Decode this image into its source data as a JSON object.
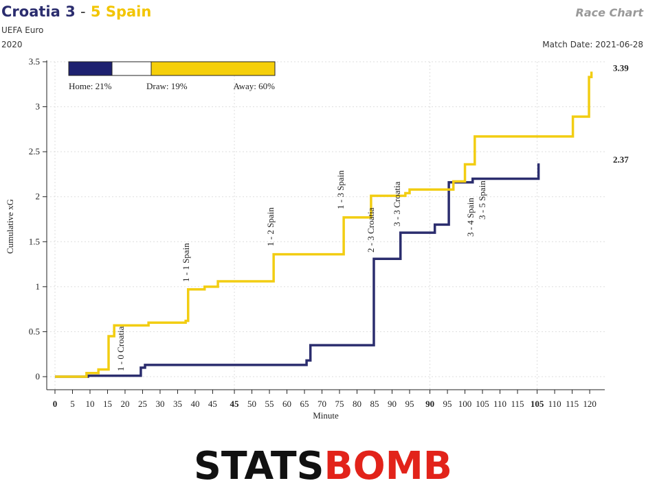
{
  "chart_data": {
    "type": "step",
    "title": {
      "home": "Croatia 3",
      "separator": "-",
      "away": "5 Spain"
    },
    "competition": "UEFA Euro",
    "season": "2020",
    "chart_name": "Race Chart",
    "match_date_label": "Match Date:",
    "match_date": "2021-06-28",
    "x_label": "Minute",
    "y_label": "Cumulative xG",
    "xlim": [
      -2.35,
      156.9
    ],
    "ylim": [
      -0.145,
      3.5
    ],
    "yticks": [
      0,
      0.5,
      1,
      1.5,
      2,
      2.5,
      3,
      3.5
    ],
    "xticks": [
      0,
      5,
      10,
      15,
      20,
      25,
      30,
      35,
      40,
      45,
      {
        "value": 51.2,
        "label": "45"
      },
      {
        "value": 56.2,
        "label": "50"
      },
      {
        "value": 61.2,
        "label": "55"
      },
      {
        "value": 66.2,
        "label": "60"
      },
      {
        "value": 71.2,
        "label": "65"
      },
      {
        "value": 76.2,
        "label": "70"
      },
      {
        "value": 81.2,
        "label": "75"
      },
      {
        "value": 86.2,
        "label": "80"
      },
      {
        "value": 91.2,
        "label": "85"
      },
      {
        "value": 96.2,
        "label": "90"
      },
      {
        "value": 101.2,
        "label": "95"
      },
      {
        "value": 107,
        "label": "90"
      },
      {
        "value": 112,
        "label": "95"
      },
      {
        "value": 117,
        "label": "100"
      },
      {
        "value": 122,
        "label": "105"
      },
      {
        "value": 127,
        "label": "110"
      },
      {
        "value": 132,
        "label": "115"
      },
      {
        "value": 137.6,
        "label": "105"
      },
      {
        "value": 142.6,
        "label": "110"
      },
      {
        "value": 147.6,
        "label": "115"
      },
      {
        "value": 152.6,
        "label": "120"
      }
    ],
    "period_starts": [
      0,
      51.2,
      107,
      137.6
    ],
    "grid": true,
    "series": [
      {
        "name": "Croatia",
        "color": "#2b2d6e",
        "x": [
          0,
          9.4,
          24.5,
          25.7,
          71.8,
          72.9,
          91,
          98.6,
          108.4,
          112.4,
          119.2,
          138
        ],
        "values": [
          0,
          0.01,
          0.1,
          0.13,
          0.18,
          0.35,
          1.31,
          1.6,
          1.69,
          2.16,
          2.2,
          2.37
        ]
      },
      {
        "name": "Spain",
        "color": "#f2cd12",
        "x": [
          0,
          9,
          12.4,
          15.3,
          16.9,
          26.7,
          37.3,
          38,
          42.7,
          46.5,
          62.4,
          82.4,
          90.2,
          100,
          101.2,
          113.7,
          117,
          119.8,
          147.8,
          152.4,
          153.1
        ],
        "values": [
          0,
          0.04,
          0.08,
          0.45,
          0.57,
          0.6,
          0.62,
          0.97,
          1,
          1.06,
          1.36,
          1.77,
          2.01,
          2.04,
          2.08,
          2.17,
          2.36,
          2.67,
          2.89,
          3.33,
          3.39
        ]
      }
    ],
    "annotations": [
      {
        "text": "1 - 0 Croatia",
        "series": 0
      },
      {
        "text": "1 - 1 Spain",
        "series": 1
      },
      {
        "text": "1 - 2 Spain",
        "series": 1
      },
      {
        "text": "1 - 3 Spain",
        "series": 1
      },
      {
        "text": "2 - 3 Croatia",
        "series": 0
      },
      {
        "text": "3 - 3 Croatia",
        "series": 0
      },
      {
        "text": "3 - 4 Spain",
        "series": 1
      },
      {
        "text": "3 - 5 Spain",
        "series": 1
      }
    ],
    "probabilities": [
      {
        "label": "Home: 21%",
        "value": 21,
        "color": "#1e2170"
      },
      {
        "label": "Draw: 19%",
        "value": 19,
        "color": "#ffffff"
      },
      {
        "label": "Away: 60%",
        "value": 60,
        "color": "#f5cf0a"
      }
    ],
    "logo": {
      "left": "STATS",
      "right": "BOMB"
    }
  }
}
